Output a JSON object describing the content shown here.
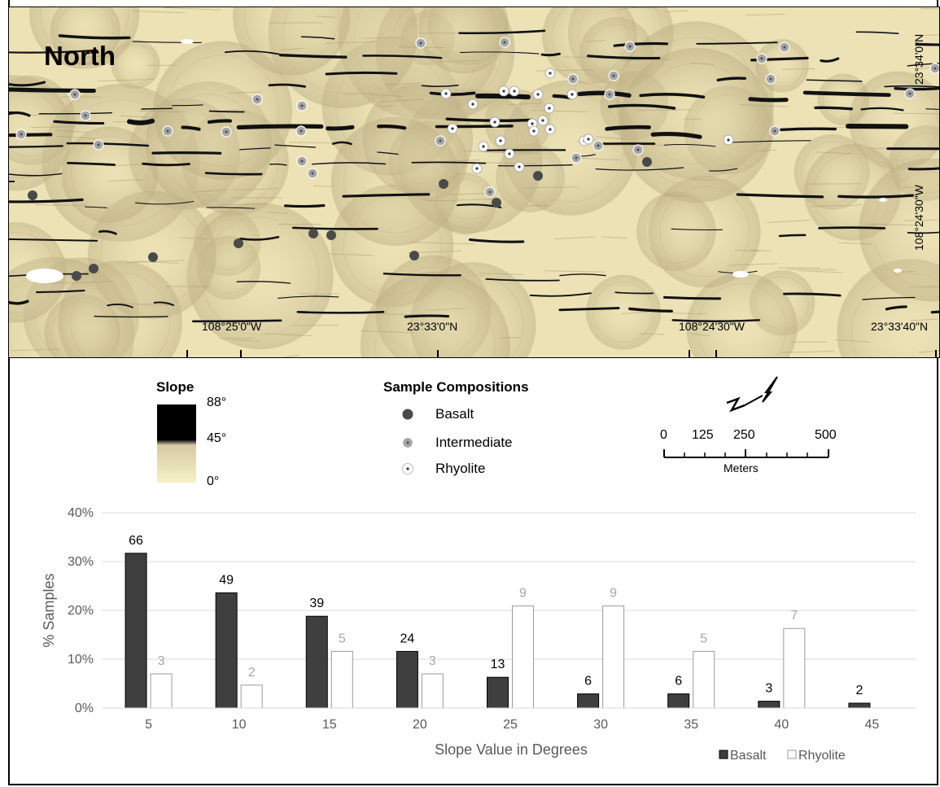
{
  "map": {
    "label": "North",
    "coord_labels": [
      "108°25'0\"W",
      "23°33'0\"N",
      "108°24'30\"W",
      "23°33'40\"N",
      "23°34'0\"N",
      "108°24'30\"W"
    ]
  },
  "slope_legend": {
    "title": "Slope",
    "labels": [
      "88°",
      "45°",
      "0°"
    ]
  },
  "composition_legend": {
    "title": "Sample Compositions",
    "items": [
      {
        "label": "Basalt",
        "color": "#4a4a4a"
      },
      {
        "label": "Intermediate",
        "color": "#9a9a9a"
      },
      {
        "label": "Rhyolite",
        "color": "#ffffff"
      }
    ]
  },
  "scale_bar": {
    "ticks": [
      "0",
      "125",
      "250",
      "500"
    ],
    "unit": "Meters"
  },
  "chart_data": {
    "type": "bar",
    "categories": [
      "5",
      "10",
      "15",
      "20",
      "25",
      "30",
      "35",
      "40",
      "45"
    ],
    "series": [
      {
        "name": "Basalt",
        "color": "#3f3f3f",
        "values": [
          31.7,
          23.6,
          18.8,
          11.6,
          6.3,
          2.9,
          2.9,
          1.4,
          1.0
        ],
        "labels": [
          "66",
          "49",
          "39",
          "24",
          "13",
          "6",
          "6",
          "3",
          "2"
        ]
      },
      {
        "name": "Rhyolite",
        "color": "#ffffff",
        "values": [
          7.0,
          4.7,
          11.6,
          7.0,
          20.9,
          20.9,
          11.6,
          16.3,
          null
        ],
        "labels": [
          "3",
          "2",
          "5",
          "3",
          "9",
          "9",
          "5",
          "7",
          ""
        ]
      }
    ],
    "y_ticks": [
      "0%",
      "10%",
      "20%",
      "30%",
      "40%"
    ],
    "ylim": [
      0,
      40
    ],
    "xlabel": "Slope Value in Degrees",
    "ylabel": "% Samples",
    "grid": true,
    "legend_position": "bottom-right"
  }
}
